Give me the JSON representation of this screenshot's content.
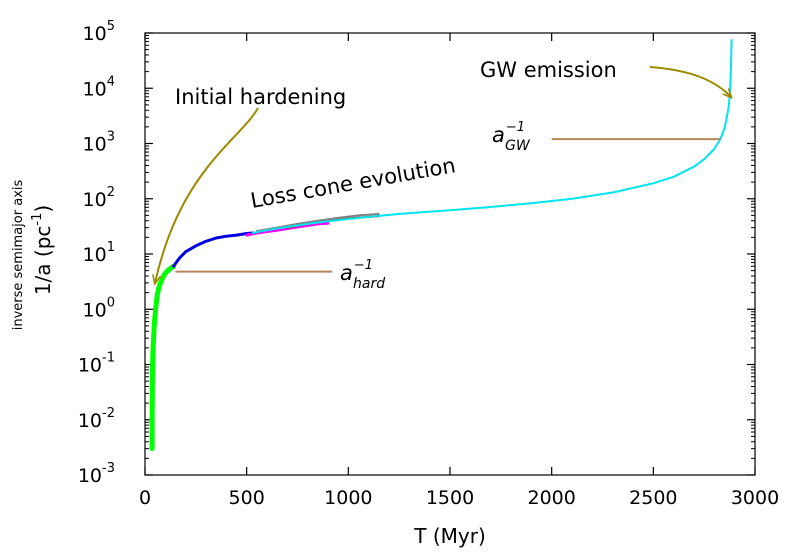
{
  "chart_data": {
    "type": "line",
    "title": "",
    "xlabel": "T (Myr)",
    "ylabel": "1/a (pc-1)",
    "ylabel_secondary": "inverse semimajor axis",
    "ylabel_parts": {
      "main": "1/a (pc",
      "sup": "-1",
      "close": ")"
    },
    "xlim": [
      0,
      3000
    ],
    "ylim": [
      0.001,
      100000
    ],
    "yscale": "log",
    "grid": false,
    "x_ticks": [
      {
        "value": 0,
        "label": "0"
      },
      {
        "value": 500,
        "label": "500"
      },
      {
        "value": 1000,
        "label": "1000"
      },
      {
        "value": 1500,
        "label": "1500"
      },
      {
        "value": 2000,
        "label": "2000"
      },
      {
        "value": 2500,
        "label": "2500"
      },
      {
        "value": 3000,
        "label": "3000"
      }
    ],
    "y_ticks": [
      {
        "value": 0.001,
        "base": "10",
        "exp": "-3"
      },
      {
        "value": 0.01,
        "base": "10",
        "exp": "-2"
      },
      {
        "value": 0.1,
        "base": "10",
        "exp": "-1"
      },
      {
        "value": 1,
        "base": "10",
        "exp": "0"
      },
      {
        "value": 10,
        "base": "10",
        "exp": "1"
      },
      {
        "value": 100,
        "base": "10",
        "exp": "2"
      },
      {
        "value": 1000,
        "base": "10",
        "exp": "3"
      },
      {
        "value": 10000,
        "base": "10",
        "exp": "4"
      },
      {
        "value": 100000,
        "base": "10",
        "exp": "5"
      }
    ],
    "series": [
      {
        "color": "#00ff00",
        "width": 5,
        "x": [
          35,
          35,
          36,
          37,
          40,
          45,
          52,
          60,
          70,
          85,
          100,
          120,
          140
        ],
        "y": [
          0.003,
          0.01,
          0.03,
          0.08,
          0.2,
          0.5,
          1.0,
          1.8,
          2.6,
          3.6,
          4.5,
          5.3,
          6.0
        ]
      },
      {
        "color": "#0000e0",
        "width": 3,
        "x": [
          140,
          170,
          200,
          250,
          300,
          350,
          400,
          450,
          500,
          530
        ],
        "y": [
          6.0,
          8.5,
          11,
          14,
          17,
          19.5,
          21,
          22,
          23.5,
          24
        ]
      },
      {
        "color": "#ff00ff",
        "width": 3,
        "x": [
          500,
          550,
          600,
          650,
          700,
          750,
          800,
          850,
          900
        ],
        "y": [
          22,
          24,
          25.5,
          27,
          29,
          31,
          33,
          35,
          36
        ]
      },
      {
        "color": "#a0522d",
        "width": 2,
        "x": [
          700,
          800,
          900,
          1000,
          1100,
          1150
        ],
        "y": [
          30,
          35,
          40,
          44,
          47,
          48
        ]
      },
      {
        "color": "#808080",
        "width": 2,
        "x": [
          550,
          650,
          750,
          850,
          950,
          1050,
          1150
        ],
        "y": [
          26,
          30,
          35,
          40,
          45,
          50,
          53
        ]
      },
      {
        "color": "#00e5ee",
        "width": 2,
        "x": [
          530,
          600,
          700,
          800,
          900,
          1000,
          1100,
          1200,
          1300,
          1500,
          1700,
          1900,
          2100,
          2300,
          2500,
          2600,
          2700,
          2750,
          2800,
          2830,
          2850,
          2860,
          2870,
          2875,
          2880,
          2883,
          2885
        ],
        "y": [
          24,
          27,
          31,
          35,
          39,
          43,
          47,
          51,
          55,
          62,
          71,
          83,
          100,
          130,
          190,
          250,
          380,
          520,
          800,
          1200,
          1900,
          2800,
          4500,
          7000,
          15000,
          35000,
          75000
        ]
      }
    ],
    "annotations": [
      {
        "id": "initial",
        "text": "Initial hardening",
        "arrow_color": "#9b8a00",
        "from": [
          520,
          3.5
        ],
        "to": [
          30,
          0.11
        ]
      },
      {
        "id": "losscone",
        "text": "Loss cone evolution"
      },
      {
        "id": "gw",
        "text": "GW emission",
        "arrow_color": "#9b8a00"
      },
      {
        "id": "ahard",
        "base": "a",
        "sup": "−1",
        "sub": "hard",
        "line_color": "#b8865a",
        "line_y": 4.8,
        "line_x": [
          150,
          920
        ]
      },
      {
        "id": "agw",
        "base": "a",
        "sup": "−1",
        "sub": "GW",
        "line_color": "#b8865a",
        "line_y": 1200,
        "line_x": [
          2000,
          2830
        ]
      }
    ]
  }
}
